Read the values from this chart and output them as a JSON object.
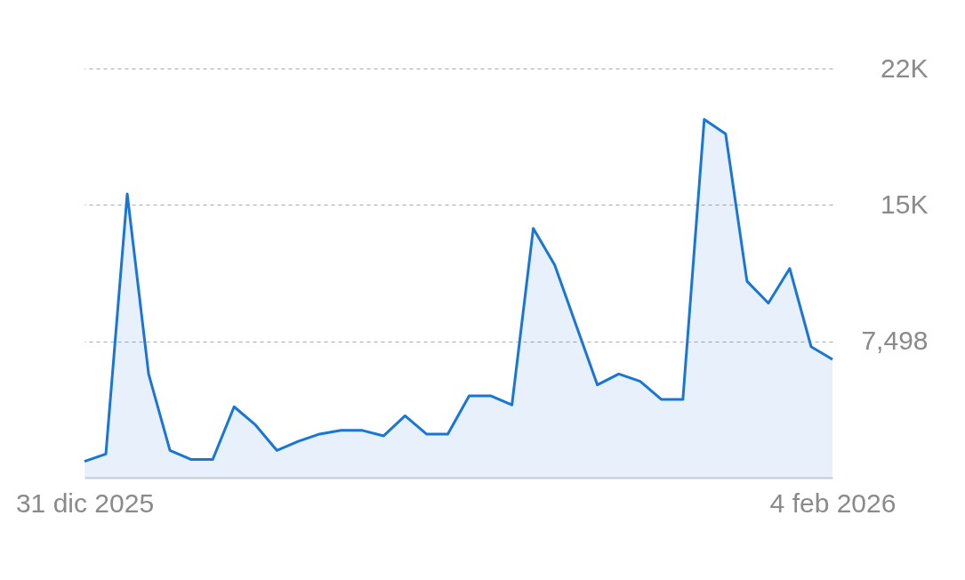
{
  "chart_data": {
    "type": "area",
    "x": [
      "2025-12-31",
      "2026-01-01",
      "2026-01-02",
      "2026-01-03",
      "2026-01-04",
      "2026-01-05",
      "2026-01-06",
      "2026-01-07",
      "2026-01-08",
      "2026-01-09",
      "2026-01-10",
      "2026-01-11",
      "2026-01-12",
      "2026-01-13",
      "2026-01-14",
      "2026-01-15",
      "2026-01-16",
      "2026-01-17",
      "2026-01-18",
      "2026-01-19",
      "2026-01-20",
      "2026-01-21",
      "2026-01-22",
      "2026-01-23",
      "2026-01-24",
      "2026-01-25",
      "2026-01-26",
      "2026-01-27",
      "2026-01-28",
      "2026-01-29",
      "2026-01-30",
      "2026-01-31",
      "2026-02-01",
      "2026-02-02",
      "2026-02-03",
      "2026-02-04"
    ],
    "series": [
      {
        "color": "#1976d6",
        "values": [
          900,
          1300,
          15600,
          5700,
          1500,
          1000,
          1000,
          3900,
          2900,
          1500,
          2000,
          2400,
          2600,
          2600,
          2300,
          3400,
          2400,
          2400,
          4500,
          4500,
          4000,
          13700,
          11700,
          8400,
          5100,
          5700,
          5300,
          4300,
          4300,
          19700,
          18900,
          10800,
          9600,
          11500,
          7200,
          6500
        ]
      }
    ],
    "xlim": [
      "2025-12-31",
      "2026-02-04"
    ],
    "xticks": [
      {
        "value": "2025-12-31",
        "label": "31 dic 2025"
      },
      {
        "value": "2026-02-04",
        "label": "4 feb 2026"
      }
    ],
    "ylim": [
      0,
      22494
    ],
    "yticks": [
      {
        "value": 7498,
        "label": "7,498"
      },
      {
        "value": 14996,
        "label": "15K"
      },
      {
        "value": 22494,
        "label": "22K"
      }
    ],
    "grid": "y"
  }
}
